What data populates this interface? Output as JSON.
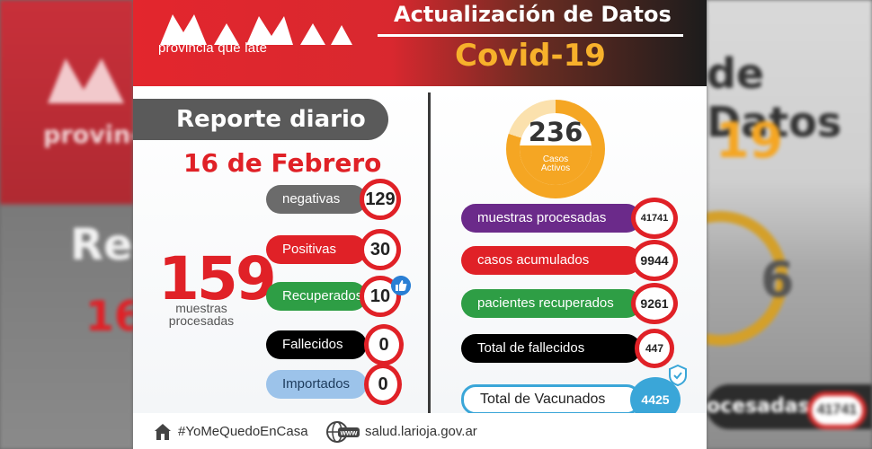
{
  "background": {
    "left_ghost": {
      "brand": "provincia",
      "report": "Re",
      "date": "16"
    },
    "right_ghost": {
      "title": "de Datos",
      "covid": "19",
      "circle_num": "6",
      "pill_label": "ocesadas",
      "pill_num": "41741"
    }
  },
  "header": {
    "brand_sub": "provincia que late",
    "update_title": "Actualización de Datos",
    "covid_title": "Covid-19"
  },
  "report": {
    "tab_label": "Reporte diario",
    "date": "16 de Febrero",
    "total_num": "159",
    "total_label_1": "muestras",
    "total_label_2": "procesadas"
  },
  "left_stats": [
    {
      "label": "negativas",
      "value": "129",
      "color": "#6b6b6b"
    },
    {
      "label": "Positivas",
      "value": "30",
      "color": "#e02127"
    },
    {
      "label": "Recuperados",
      "value": "10",
      "color": "#2e9e45"
    },
    {
      "label": "Fallecidos",
      "value": "0",
      "color": "#000000"
    },
    {
      "label": "Importados",
      "value": "0",
      "color": "#9cc3ea"
    }
  ],
  "active": {
    "value": "236",
    "label_1": "Casos",
    "label_2": "Activos"
  },
  "right_stats": [
    {
      "label": "muestras procesadas",
      "value": "41741",
      "color": "#6b2a8a"
    },
    {
      "label": "casos acumulados",
      "value": "9944",
      "color": "#e02127"
    },
    {
      "label": "pacientes recuperados",
      "value": "9261",
      "color": "#2e9e45"
    },
    {
      "label": "Total de fallecidos",
      "value": "447",
      "color": "#000000"
    },
    {
      "label": "Total de Vacunados",
      "value": "4425",
      "color": "#ffffff"
    }
  ],
  "footer": {
    "hashtag": "#YoMeQuedoEnCasa",
    "web_icon_text": "www",
    "website": "salud.larioja.gov.ar"
  },
  "colors": {
    "red": "#e02127",
    "orange": "#f5a623",
    "blue": "#2a7fd4"
  }
}
